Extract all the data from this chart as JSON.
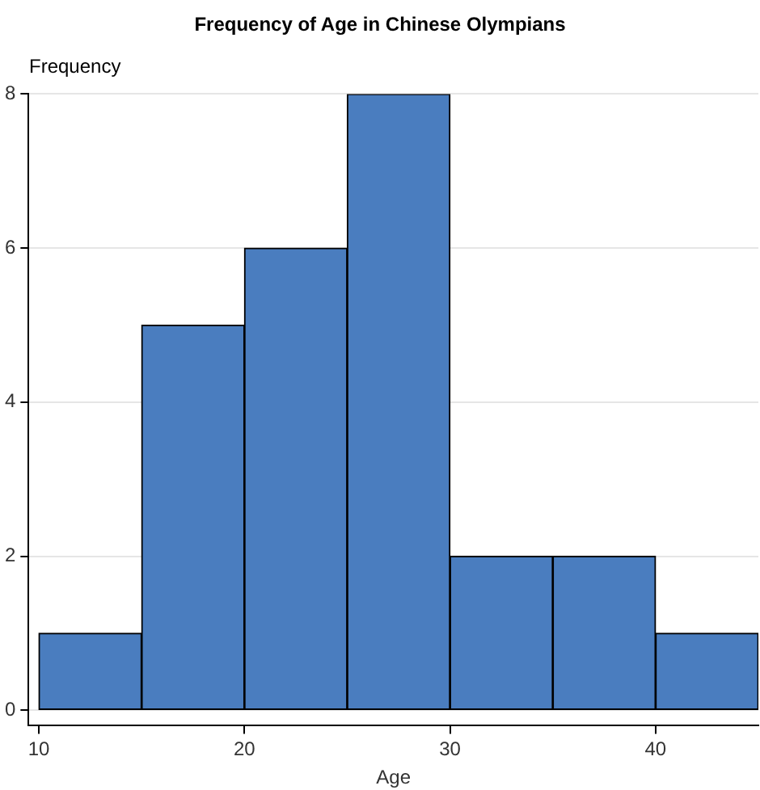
{
  "chart_data": {
    "type": "histogram",
    "title": "Frequency of Age in Chinese Olympians",
    "xlabel": "Age",
    "ylabel": "Frequency",
    "bins": [
      10,
      15,
      20,
      25,
      30,
      35,
      40,
      45
    ],
    "values": [
      1,
      5,
      6,
      8,
      2,
      2,
      1
    ],
    "color": "#4a7dbf",
    "xlim": [
      9.5,
      45
    ],
    "xticks": [
      10,
      20,
      30,
      40
    ],
    "ylim": [
      -0.2,
      8
    ],
    "yticks": [
      0,
      2,
      4,
      6,
      8
    ],
    "grid": "y",
    "legend": false
  }
}
